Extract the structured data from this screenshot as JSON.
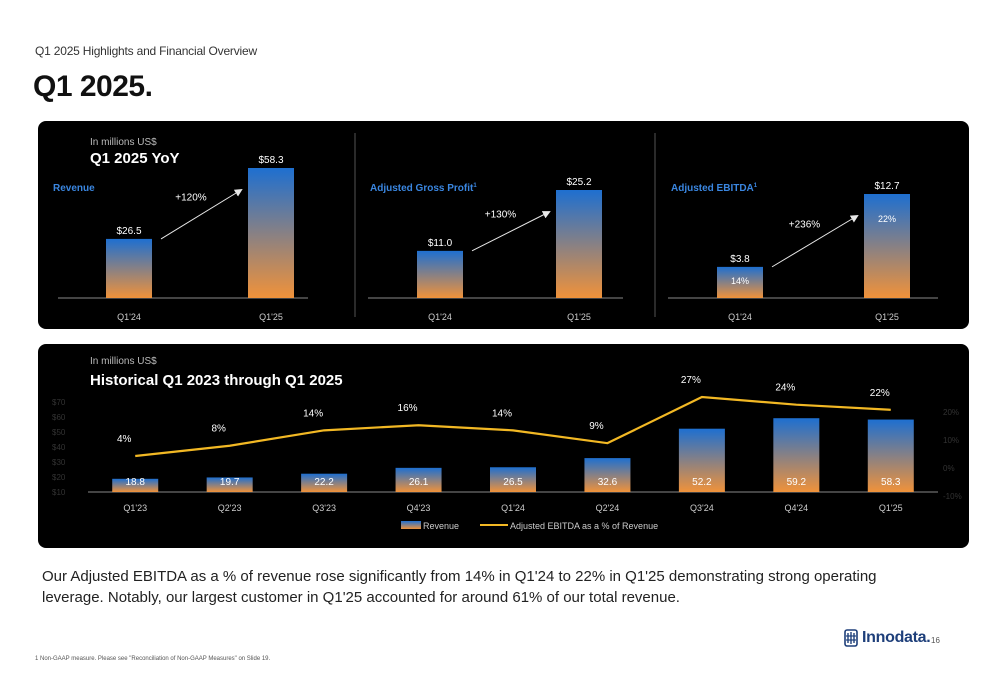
{
  "header": {
    "eyebrow": "Q1 2025 Highlights and Financial Overview",
    "title": "Q1 2025."
  },
  "colors": {
    "bar_top": "#1e6fd0",
    "bar_bottom": "#f0923a",
    "line": "#f2b824",
    "panel": "#000000",
    "metric_label": "#3a86e0"
  },
  "yoy": {
    "subtitle": "In millions US$",
    "title": "Q1 2025 YoY"
  },
  "chart_data": [
    {
      "type": "bar",
      "title": "Revenue",
      "categories": [
        "Q1'24",
        "Q1'25"
      ],
      "values": [
        26.5,
        58.3
      ],
      "value_labels": [
        "$26.5",
        "$58.3"
      ],
      "growth_label": "+120%"
    },
    {
      "type": "bar",
      "title": "Adjusted Gross Profit",
      "title_sup": "1",
      "categories": [
        "Q1'24",
        "Q1'25"
      ],
      "values": [
        11.0,
        25.2
      ],
      "value_labels": [
        "$11.0",
        "$25.2"
      ],
      "growth_label": "+130%"
    },
    {
      "type": "bar",
      "title": "Adjusted EBITDA",
      "title_sup": "1",
      "categories": [
        "Q1'24",
        "Q1'25"
      ],
      "values": [
        3.8,
        12.7
      ],
      "value_labels": [
        "$3.8",
        "$12.7"
      ],
      "inner_labels": [
        "14%",
        "22%"
      ],
      "growth_label": "+236%"
    },
    {
      "type": "bar+line",
      "subtitle": "In millions US$",
      "title": "Historical Q1 2023 through Q1 2025",
      "categories": [
        "Q1'23",
        "Q2'23",
        "Q3'23",
        "Q4'23",
        "Q1'24",
        "Q2'24",
        "Q3'24",
        "Q4'24",
        "Q1'25"
      ],
      "series": [
        {
          "name": "Revenue",
          "type": "bar",
          "values": [
            18.8,
            19.7,
            22.2,
            26.1,
            26.5,
            32.6,
            52.2,
            59.2,
            58.3
          ],
          "labels": [
            "18.8",
            "19.7",
            "22.2",
            "26.1",
            "26.5",
            "32.6",
            "52.2",
            "59.2",
            "58.3"
          ]
        },
        {
          "name": "Adjusted EBITDA as a % of Revenue",
          "type": "line",
          "values": [
            4,
            8,
            14,
            16,
            14,
            9,
            27,
            24,
            22
          ],
          "labels": [
            "4%",
            "8%",
            "14%",
            "16%",
            "14%",
            "9%",
            "27%",
            "24%",
            "22%"
          ]
        }
      ],
      "y_left_ticks": [
        "$70",
        "$60",
        "$50",
        "$40",
        "$30",
        "$20",
        "$10"
      ],
      "y_left_range": [
        10,
        70
      ],
      "y_right_ticks": [
        "20%",
        "10%",
        "0%",
        "-10%"
      ],
      "y_right_range": [
        -10,
        20
      ],
      "legend": "bottom"
    }
  ],
  "narrative": "Our Adjusted EBITDA as a % of revenue rose significantly from 14% in Q1'24 to 22% in Q1'25 demonstrating strong operating leverage. Notably, our largest customer in Q1'25 accounted for around 61% of our total revenue.",
  "brand": {
    "name": "Innodata.",
    "page_number": "16"
  },
  "footnote": "1 Non-GAAP measure. Please see \"Reconciliation of Non-GAAP Measures\" on Slide 19."
}
